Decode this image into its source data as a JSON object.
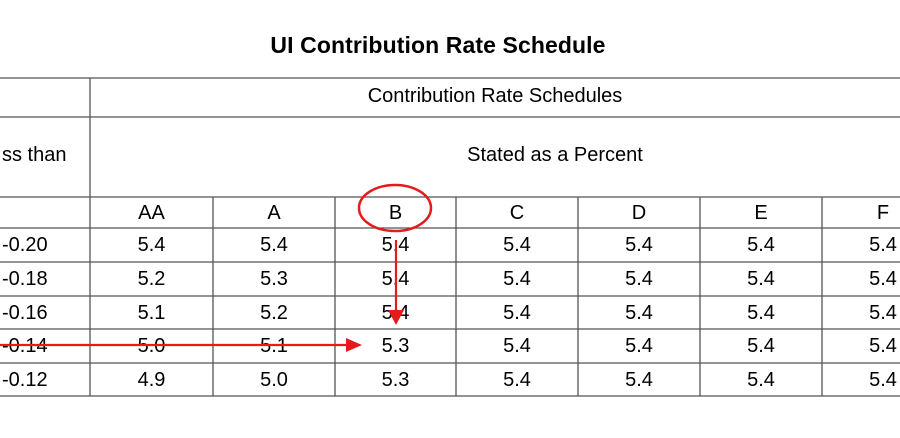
{
  "title": "UI Contribution Rate Schedule",
  "header": {
    "group_label": "Contribution Rate Schedules",
    "first_col_label": "ss than",
    "sub_label": "Stated as a Percent"
  },
  "columns": [
    "AA",
    "A",
    "B",
    "C",
    "D",
    "E",
    "F"
  ],
  "rows": [
    {
      "key": "-0.20",
      "values": [
        "5.4",
        "5.4",
        "5.4",
        "5.4",
        "5.4",
        "5.4",
        "5.4"
      ]
    },
    {
      "key": "-0.18",
      "values": [
        "5.2",
        "5.3",
        "5.4",
        "5.4",
        "5.4",
        "5.4",
        "5.4"
      ]
    },
    {
      "key": "-0.16",
      "values": [
        "5.1",
        "5.2",
        "5.4",
        "5.4",
        "5.4",
        "5.4",
        "5.4"
      ]
    },
    {
      "key": "-0.14",
      "values": [
        "5.0",
        "5.1",
        "5.3",
        "5.4",
        "5.4",
        "5.4",
        "5.4"
      ]
    },
    {
      "key": "-0.12",
      "values": [
        "4.9",
        "5.0",
        "5.3",
        "5.4",
        "5.4",
        "5.4",
        "5.4"
      ]
    }
  ],
  "annotation": {
    "circled_column": "B",
    "highlight_row_key": "-0.14",
    "result_value": "5.3",
    "color": "#e31b1b"
  }
}
